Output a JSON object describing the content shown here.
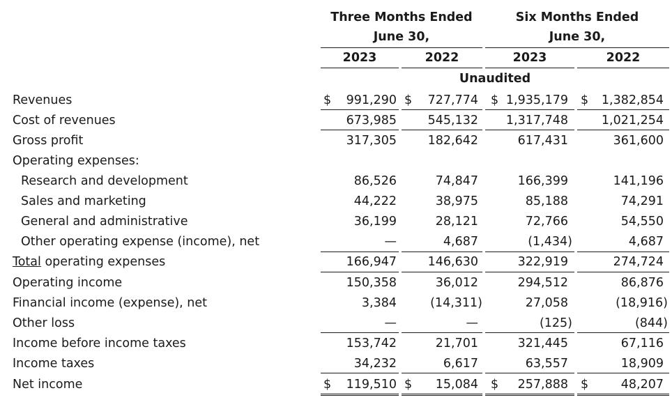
{
  "header": {
    "group1": [
      "Three Months Ended",
      "June 30,"
    ],
    "group2": [
      "Six Months Ended",
      "June 30,"
    ],
    "years": [
      "2023",
      "2022",
      "2023",
      "2022"
    ],
    "note": "Unaudited"
  },
  "currency_symbol": "$",
  "rows": [
    {
      "label": "Revenues",
      "indent": false,
      "currency": true,
      "values": [
        "991,290",
        "727,774",
        "1,935,179",
        "1,382,854"
      ]
    },
    {
      "label": "Cost of revenues",
      "indent": false,
      "currency": false,
      "values": [
        "673,985",
        "545,132",
        "1,317,748",
        "1,021,254"
      ]
    },
    {
      "label": "Gross profit",
      "indent": false,
      "currency": false,
      "values": [
        "317,305",
        "182,642",
        "617,431",
        "361,600"
      ]
    },
    {
      "label": "Operating expenses:",
      "indent": false,
      "currency": false,
      "values": [
        "",
        "",
        "",
        ""
      ]
    },
    {
      "label": "Research and development",
      "indent": true,
      "currency": false,
      "values": [
        "86,526",
        "74,847",
        "166,399",
        "141,196"
      ]
    },
    {
      "label": "Sales and marketing",
      "indent": true,
      "currency": false,
      "values": [
        "44,222",
        "38,975",
        "85,188",
        "74,291"
      ]
    },
    {
      "label": "General and administrative",
      "indent": true,
      "currency": false,
      "values": [
        "36,199",
        "28,121",
        "72,766",
        "54,550"
      ]
    },
    {
      "label": "Other operating expense (income), net",
      "indent": true,
      "currency": false,
      "values": [
        "—",
        "4,687",
        "(1,434)",
        "4,687"
      ]
    },
    {
      "label_parts": [
        "Total",
        " operating expenses"
      ],
      "label": "Total operating expenses",
      "indent": false,
      "currency": false,
      "values": [
        "166,947",
        "146,630",
        "322,919",
        "274,724"
      ]
    },
    {
      "label": "Operating income",
      "indent": false,
      "currency": false,
      "values": [
        "150,358",
        "36,012",
        "294,512",
        "86,876"
      ]
    },
    {
      "label": "Financial income (expense), net",
      "indent": false,
      "currency": false,
      "values": [
        "3,384",
        "(14,311)",
        "27,058",
        "(18,916)"
      ]
    },
    {
      "label": "Other loss",
      "indent": false,
      "currency": false,
      "values": [
        "—",
        "—",
        "(125)",
        "(844)"
      ]
    },
    {
      "label": "Income before income taxes",
      "indent": false,
      "currency": false,
      "values": [
        "153,742",
        "21,701",
        "321,445",
        "67,116"
      ]
    },
    {
      "label": "Income taxes",
      "indent": false,
      "currency": false,
      "values": [
        "34,232",
        "6,617",
        "63,557",
        "18,909"
      ]
    },
    {
      "label": "Net income",
      "indent": false,
      "currency": true,
      "values": [
        "119,510",
        "15,084",
        "257,888",
        "48,207"
      ]
    }
  ]
}
